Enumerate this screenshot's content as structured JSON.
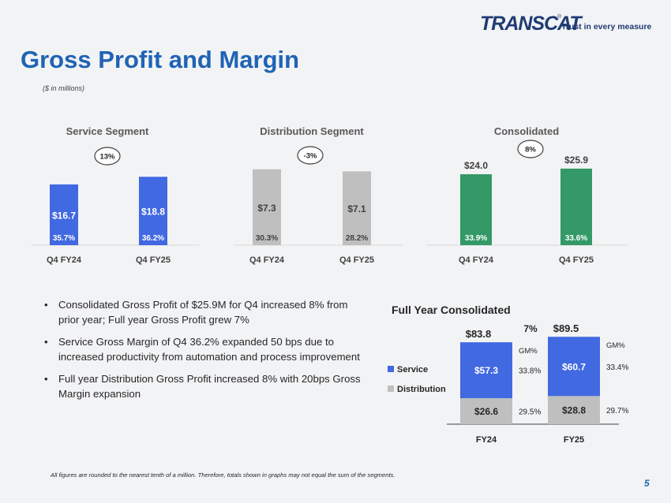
{
  "logo": {
    "word": "TRANSCAT",
    "reg": "®",
    "tagline": "Trust in every measure"
  },
  "title": "Gross Profit and Margin",
  "subtitle": "($ in millions)",
  "colors": {
    "service": "#4169e1",
    "distribution": "#bfbfbf",
    "consolidated": "#339966",
    "title": "#1f63b5"
  },
  "bullets": [
    "Consolidated Gross Profit of $25.9M for Q4 increased 8% from prior year; Full year Gross Profit grew 7%",
    "Service Gross Margin of Q4 36.2% expanded 50 bps due to increased productivity from automation and process improvement",
    "Full year Distribution Gross Profit increased 8% with 20bps Gross Margin expansion"
  ],
  "bullet_glyph": "•",
  "footnote": "All figures are rounded to the nearest tenth of a million. Therefore, totals shown in graphs may not equal the sum of the segments.",
  "page_number": "5",
  "chart_data": [
    {
      "type": "bar",
      "title": "Service Segment",
      "categories": [
        "Q4 FY24",
        "Q4 FY25"
      ],
      "values": [
        16.7,
        18.8
      ],
      "value_labels": [
        "$16.7",
        "$18.8"
      ],
      "margins": [
        "35.7%",
        "36.2%"
      ],
      "growth": "13%",
      "color_key": "service",
      "ylim": [
        0,
        26
      ]
    },
    {
      "type": "bar",
      "title": "Distribution Segment",
      "categories": [
        "Q4 FY24",
        "Q4 FY25"
      ],
      "values": [
        7.3,
        7.1
      ],
      "value_labels": [
        "$7.3",
        "$7.1"
      ],
      "margins": [
        "30.3%",
        "28.2%"
      ],
      "growth": "-3%",
      "color_key": "distribution",
      "ylim": [
        0,
        9.1
      ]
    },
    {
      "type": "bar",
      "title": "Consolidated",
      "categories": [
        "Q4 FY24",
        "Q4 FY25"
      ],
      "values": [
        24.0,
        25.9
      ],
      "value_labels": [
        "$24.0",
        "$25.9"
      ],
      "margins": [
        "33.9%",
        "33.6%"
      ],
      "growth": "8%",
      "color_key": "consolidated",
      "ylim": [
        0,
        32
      ]
    },
    {
      "type": "bar",
      "stacked": true,
      "title": "Full Year Consolidated",
      "categories": [
        "FY24",
        "FY25"
      ],
      "series": [
        {
          "name": "Distribution",
          "values": [
            26.6,
            28.8
          ],
          "labels": [
            "$26.6",
            "$28.8"
          ],
          "margins": [
            "29.5%",
            "29.7%"
          ],
          "color_key": "distribution"
        },
        {
          "name": "Service",
          "values": [
            57.3,
            60.7
          ],
          "labels": [
            "$57.3",
            "$60.7"
          ],
          "margins": [
            "33.8%",
            "33.4%"
          ],
          "color_key": "service"
        }
      ],
      "totals": [
        "$83.8",
        "$89.5"
      ],
      "growth": "7%",
      "margin_header": "GM%",
      "legend": [
        "Service",
        "Distribution"
      ],
      "legend_position": "left",
      "ylim": [
        0,
        105
      ]
    }
  ]
}
